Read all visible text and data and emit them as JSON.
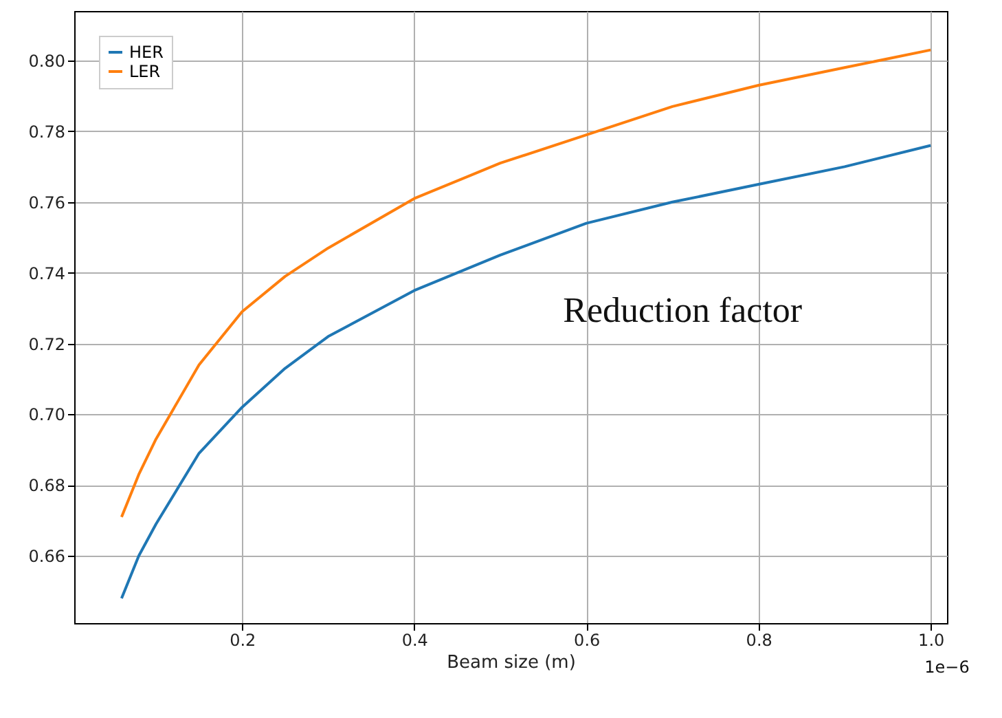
{
  "chart_data": {
    "type": "line",
    "xlabel": "Beam size (m)",
    "x": [
      0.06,
      0.08,
      0.1,
      0.15,
      0.2,
      0.25,
      0.3,
      0.4,
      0.5,
      0.6,
      0.7,
      0.8,
      0.9,
      1.0
    ],
    "series": [
      {
        "name": "HER",
        "color": "#1f77b4",
        "values": [
          0.648,
          0.66,
          0.669,
          0.689,
          0.702,
          0.713,
          0.722,
          0.735,
          0.745,
          0.754,
          0.76,
          0.765,
          0.77,
          0.776
        ]
      },
      {
        "name": "LER",
        "color": "#ff7f0e",
        "values": [
          0.671,
          0.683,
          0.693,
          0.714,
          0.729,
          0.739,
          0.747,
          0.761,
          0.771,
          0.779,
          0.787,
          0.793,
          0.798,
          0.803
        ]
      }
    ],
    "xlim": [
      0.005,
      1.019
    ],
    "ylim": [
      0.641,
      0.814
    ],
    "xticks": [
      0.2,
      0.4,
      0.6,
      0.8,
      {
        "value": 1,
        "label": "1.0"
      }
    ],
    "yticks": [
      0.66,
      0.68,
      {
        "value": 0.7,
        "label": "0.70"
      },
      0.72,
      0.74,
      0.76,
      0.78,
      {
        "value": 0.8,
        "label": "0.80"
      }
    ],
    "annotations": [
      "Reduction factor",
      "1e−6"
    ],
    "grid": true,
    "legend": "top left",
    "marker": "none",
    "line_style": "solid"
  }
}
